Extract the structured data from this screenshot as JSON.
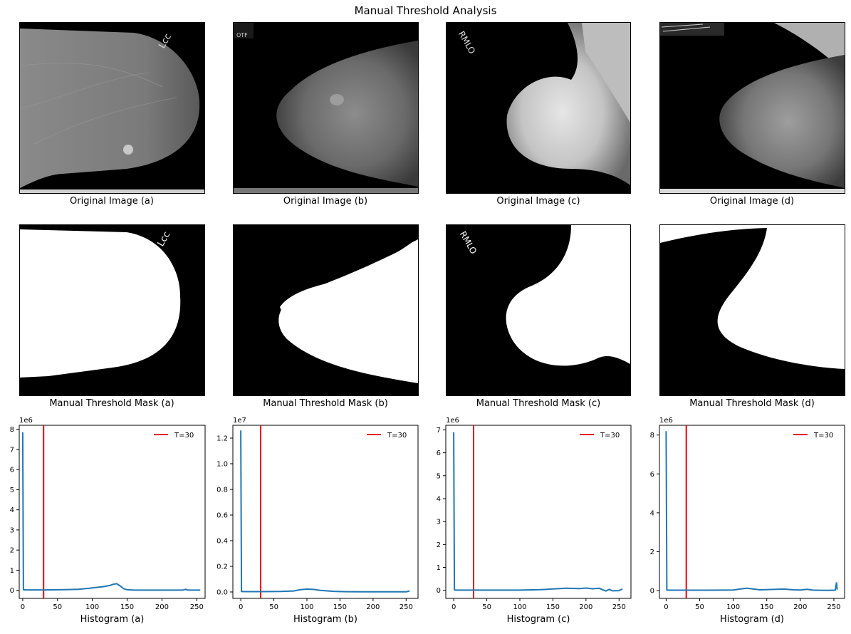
{
  "figure": {
    "title": "Manual Threshold Analysis"
  },
  "images": [
    {
      "caption": "Original Image (a)",
      "marker_text": "Lcc"
    },
    {
      "caption": "Original Image (b)",
      "marker_text": "OTF"
    },
    {
      "caption": "Original Image (c)",
      "marker_text": "RMLO"
    },
    {
      "caption": "Original Image (d)",
      "marker_text": ""
    }
  ],
  "masks": [
    {
      "caption": "Manual Threshold Mask (a)"
    },
    {
      "caption": "Manual Threshold Mask (b)"
    },
    {
      "caption": "Manual Threshold Mask (c)"
    },
    {
      "caption": "Manual Threshold Mask (d)"
    }
  ],
  "chart_data": [
    {
      "type": "line",
      "xlabel": "Histogram (a)",
      "ylabel": "",
      "y_scale_label": "1e6",
      "xlim": [
        -5,
        262
      ],
      "ylim": [
        -0.4,
        8.2
      ],
      "xticks": [
        0,
        50,
        100,
        150,
        200,
        250
      ],
      "yticks": [
        0,
        1,
        2,
        3,
        4,
        5,
        6,
        7,
        8
      ],
      "ytick_labels": [
        "0",
        "1",
        "2",
        "3",
        "4",
        "5",
        "6",
        "7",
        "8"
      ],
      "threshold": 30,
      "legend": "T=30",
      "legend_position": "top-right",
      "series": [
        {
          "x": [
            0,
            1,
            5,
            30,
            60,
            80,
            100,
            115,
            125,
            130,
            135,
            140,
            145,
            150,
            160,
            200,
            230,
            234,
            236,
            240,
            255
          ],
          "values": [
            7.85,
            0.03,
            0.02,
            0.02,
            0.03,
            0.05,
            0.12,
            0.18,
            0.24,
            0.3,
            0.33,
            0.22,
            0.08,
            0.03,
            0.01,
            0.01,
            0.01,
            0.05,
            0.02,
            0.01,
            0.01
          ]
        }
      ]
    },
    {
      "type": "line",
      "xlabel": "Histogram (b)",
      "ylabel": "",
      "y_scale_label": "1e7",
      "xlim": [
        -12,
        268
      ],
      "ylim": [
        -0.05,
        1.3
      ],
      "xticks": [
        0,
        50,
        100,
        150,
        200,
        250
      ],
      "yticks": [
        0,
        0.2,
        0.4,
        0.6,
        0.8,
        1.0,
        1.2
      ],
      "ytick_labels": [
        "0.0",
        "0.2",
        "0.4",
        "0.6",
        "0.8",
        "1.0",
        "1.2"
      ],
      "threshold": 30,
      "legend": "T=30",
      "legend_position": "top-right",
      "series": [
        {
          "x": [
            0,
            1,
            5,
            30,
            60,
            80,
            90,
            100,
            110,
            120,
            140,
            160,
            200,
            250,
            254,
            255
          ],
          "values": [
            1.26,
            0.004,
            0.003,
            0.003,
            0.004,
            0.008,
            0.018,
            0.022,
            0.02,
            0.012,
            0.005,
            0.002,
            0.001,
            0.001,
            0.006,
            0.01
          ]
        }
      ]
    },
    {
      "type": "line",
      "xlabel": "Histogram (c)",
      "ylabel": "",
      "y_scale_label": "1e6",
      "xlim": [
        -12,
        268
      ],
      "ylim": [
        -0.35,
        7.2
      ],
      "xticks": [
        0,
        50,
        100,
        150,
        200,
        250
      ],
      "yticks": [
        0,
        1,
        2,
        3,
        4,
        5,
        6,
        7
      ],
      "ytick_labels": [
        "0",
        "1",
        "2",
        "3",
        "4",
        "5",
        "6",
        "7"
      ],
      "threshold": 30,
      "legend": "T=30",
      "legend_position": "top-right",
      "series": [
        {
          "x": [
            0,
            1,
            5,
            30,
            60,
            100,
            130,
            150,
            170,
            190,
            200,
            210,
            220,
            230,
            235,
            240,
            250,
            255
          ],
          "values": [
            6.9,
            0.02,
            0.01,
            0.01,
            0.01,
            0.01,
            0.03,
            0.06,
            0.09,
            0.08,
            0.1,
            0.07,
            0.09,
            -0.03,
            0.04,
            -0.02,
            -0.01,
            0.06
          ]
        }
      ]
    },
    {
      "type": "line",
      "xlabel": "Histogram (d)",
      "ylabel": "",
      "y_scale_label": "1e6",
      "xlim": [
        -10,
        266
      ],
      "ylim": [
        -0.4,
        8.5
      ],
      "xticks": [
        0,
        50,
        100,
        150,
        200,
        250
      ],
      "yticks": [
        0,
        2,
        4,
        6,
        8
      ],
      "ytick_labels": [
        "0",
        "2",
        "4",
        "6",
        "8"
      ],
      "threshold": 30,
      "legend": "T=30",
      "legend_position": "top-right",
      "series": [
        {
          "x": [
            0,
            1,
            5,
            30,
            60,
            100,
            110,
            120,
            125,
            140,
            160,
            175,
            190,
            200,
            210,
            220,
            240,
            252,
            254,
            255
          ],
          "values": [
            8.2,
            0.03,
            0.02,
            0.02,
            0.02,
            0.03,
            0.08,
            0.12,
            0.1,
            0.04,
            0.06,
            0.08,
            0.04,
            0.03,
            0.07,
            0.02,
            0.01,
            0.02,
            0.42,
            0.05
          ]
        }
      ]
    }
  ]
}
